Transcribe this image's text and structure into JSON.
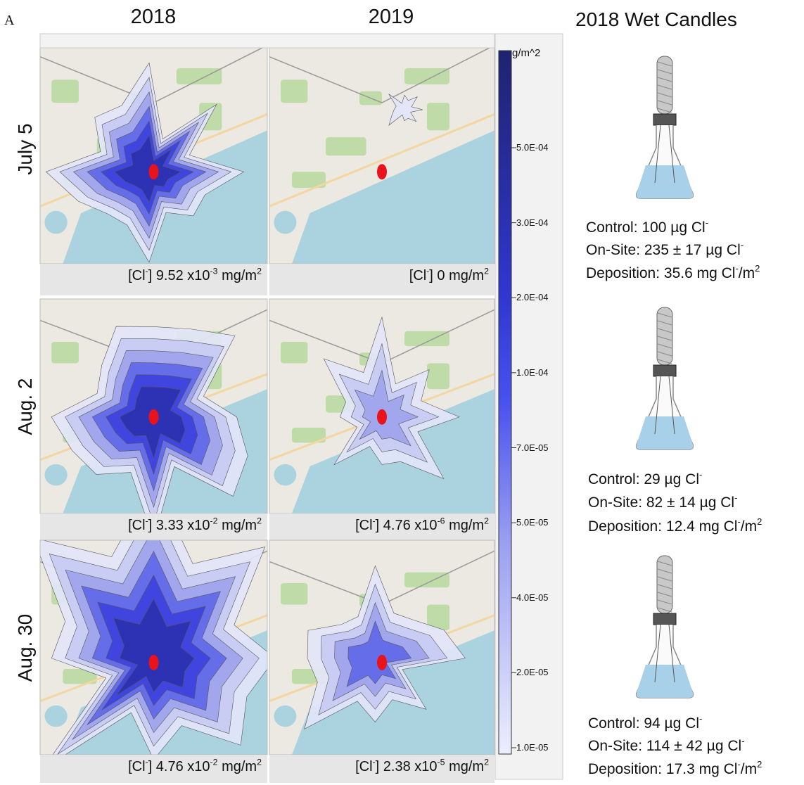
{
  "label": "A",
  "columns": [
    "2018",
    "2019"
  ],
  "candles_title": "2018 Wet Candles",
  "rows": [
    {
      "label": "July 5",
      "captions": [
        [
          {
            "text": "[Cl"
          },
          {
            "text": "-",
            "sup": true
          },
          {
            "text": "] 9.52 x10"
          },
          {
            "text": "-3",
            "sup": true
          },
          {
            "text": " mg/m"
          },
          {
            "text": "2",
            "sup": true
          }
        ],
        [
          {
            "text": "[Cl"
          },
          {
            "text": "-",
            "sup": true
          },
          {
            "text": "] 0  mg/m"
          },
          {
            "text": "2",
            "sup": true
          }
        ]
      ]
    },
    {
      "label": "Aug. 2",
      "captions": [
        [
          {
            "text": "[Cl"
          },
          {
            "text": "-",
            "sup": true
          },
          {
            "text": "] 3.33 x10"
          },
          {
            "text": "-2",
            "sup": true
          },
          {
            "text": " mg/m"
          },
          {
            "text": "2",
            "sup": true
          }
        ],
        [
          {
            "text": "[Cl"
          },
          {
            "text": "-",
            "sup": true
          },
          {
            "text": "] 4.76 x10"
          },
          {
            "text": "-6",
            "sup": true
          },
          {
            "text": " mg/m"
          },
          {
            "text": "2",
            "sup": true
          }
        ]
      ]
    },
    {
      "label": "Aug. 30",
      "captions": [
        [
          {
            "text": "[Cl"
          },
          {
            "text": "-",
            "sup": true
          },
          {
            "text": "] 4.76  x10"
          },
          {
            "text": "-2",
            "sup": true
          },
          {
            "text": " mg/m"
          },
          {
            "text": "2",
            "sup": true
          }
        ],
        [
          {
            "text": "[Cl"
          },
          {
            "text": "-",
            "sup": true
          },
          {
            "text": "] 2.38 x10"
          },
          {
            "text": "-5",
            "sup": true
          },
          {
            "text": " mg/m"
          },
          {
            "text": "2",
            "sup": true
          }
        ]
      ]
    }
  ],
  "colorbar": {
    "unit": "g/m^2",
    "ticks": [
      "5.0E-04",
      "3.0E-04",
      "2.0E-04",
      "1.0E-04",
      "7.0E-05",
      "5.0E-05",
      "4.0E-05",
      "2.0E-05",
      "1.0E-05"
    ]
  },
  "candles": [
    {
      "lines": [
        [
          {
            "text": "Control: 100 µg Cl"
          },
          {
            "text": "-",
            "sup": true
          }
        ],
        [
          {
            "text": "On-Site: 235 ± 17 µg Cl"
          },
          {
            "text": "-",
            "sup": true
          }
        ],
        [
          {
            "text": "Deposition: 35.6 mg Cl"
          },
          {
            "text": "-",
            "sup": true
          },
          {
            "text": "/m"
          },
          {
            "text": "2",
            "sup": true
          }
        ]
      ]
    },
    {
      "lines": [
        [
          {
            "text": "Control: 29 µg Cl"
          },
          {
            "text": "-",
            "sup": true
          }
        ],
        [
          {
            "text": "On-Site: 82 ± 14 µg Cl"
          },
          {
            "text": "-",
            "sup": true
          }
        ],
        [
          {
            "text": "Deposition: 12.4 mg Cl"
          },
          {
            "text": "-",
            "sup": true
          },
          {
            "text": "/m"
          },
          {
            "text": "2",
            "sup": true
          }
        ]
      ]
    },
    {
      "lines": [
        [
          {
            "text": "Control: 94 µg Cl"
          },
          {
            "text": "-",
            "sup": true
          }
        ],
        [
          {
            "text": "On-Site: 114 ± 42 µg Cl"
          },
          {
            "text": "-",
            "sup": true
          }
        ],
        [
          {
            "text": "Deposition: 17.3 mg Cl"
          },
          {
            "text": "-",
            "sup": true
          },
          {
            "text": "/m"
          },
          {
            "text": "2",
            "sup": true
          }
        ]
      ]
    }
  ]
}
